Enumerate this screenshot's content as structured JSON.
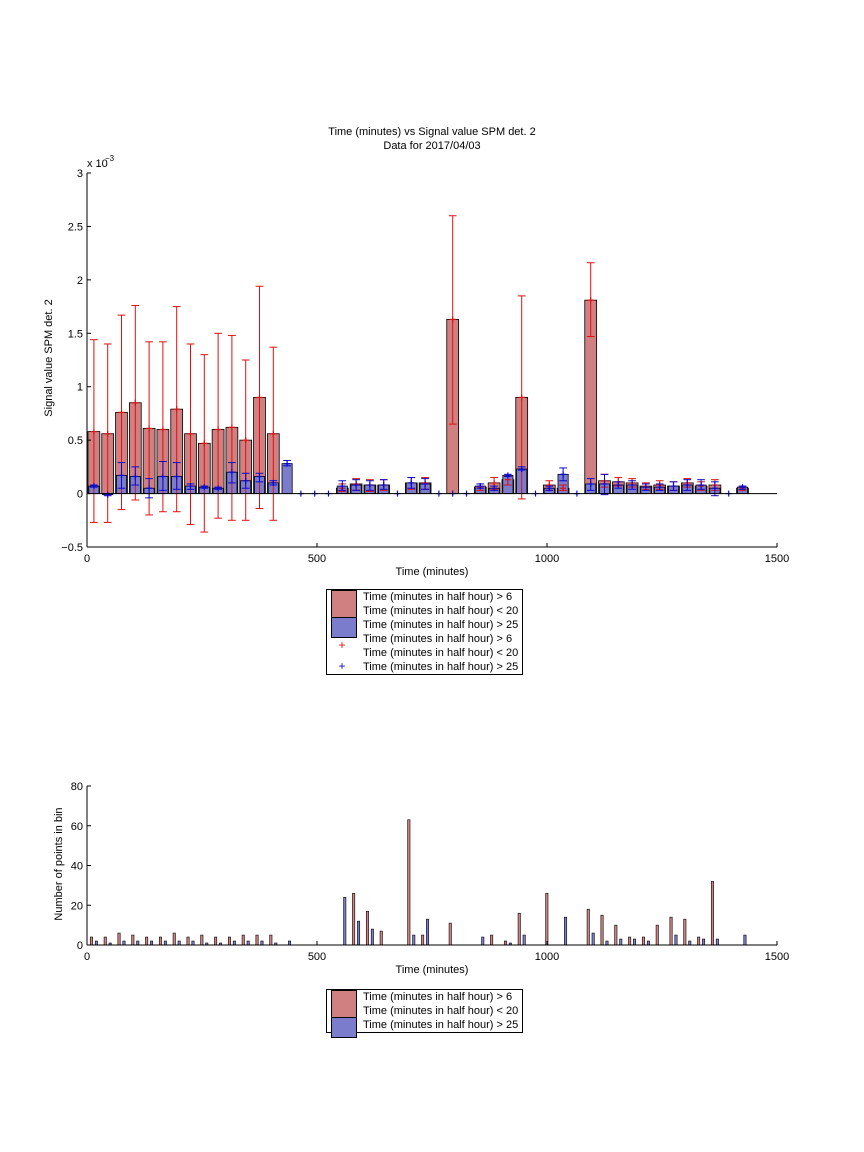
{
  "colors": {
    "bar_red": "#d08080",
    "bar_blue": "#7c7ccc",
    "err_red": "#e01010",
    "err_blue": "#0a0ad0",
    "axis": "#000000"
  },
  "chart_data": [
    {
      "type": "bar",
      "title": "Time (minutes) vs Signal value SPM det. 2",
      "subtitle": "Data for 2017/04/03",
      "xlabel": "Time (minutes)",
      "ylabel": "Signal value SPM det. 2",
      "exponent_label": "x 10",
      "exponent_power": "−3",
      "xlim": [
        0,
        1500
      ],
      "ylim": [
        -0.5,
        3
      ],
      "xticks": [
        "0",
        "500",
        "1000",
        "1500"
      ],
      "yticks": [
        "−0.5",
        "0",
        "0.5",
        "1",
        "1.5",
        "2",
        "2.5",
        "3"
      ],
      "ytick_values": [
        -0.5,
        0,
        0.5,
        1,
        1.5,
        2,
        2.5,
        3
      ],
      "series": [
        {
          "name": "Time (minutes in half hour) > 6\nTime (minutes in half hour) < 20",
          "x": [
            15,
            45,
            75,
            105,
            135,
            165,
            195,
            225,
            255,
            285,
            315,
            345,
            375,
            405,
            555,
            585,
            615,
            645,
            705,
            735,
            795,
            855,
            885,
            915,
            945,
            1005,
            1035,
            1095,
            1125,
            1155,
            1185,
            1215,
            1245,
            1275,
            1305,
            1335,
            1365,
            1425
          ],
          "values": [
            0.58,
            0.56,
            0.76,
            0.85,
            0.61,
            0.6,
            0.79,
            0.56,
            0.47,
            0.6,
            0.62,
            0.5,
            0.9,
            0.56,
            0.05,
            0.09,
            0.08,
            0.08,
            0.1,
            0.1,
            1.63,
            0.06,
            0.1,
            0.13,
            0.9,
            0.08,
            0.05,
            1.81,
            0.12,
            0.11,
            0.1,
            0.07,
            0.08,
            0.07,
            0.1,
            0.07,
            0.08,
            0.05
          ],
          "err_low": [
            -0.27,
            -0.27,
            -0.15,
            -0.06,
            -0.2,
            -0.17,
            -0.17,
            -0.29,
            -0.36,
            -0.23,
            -0.25,
            -0.25,
            -0.14,
            -0.25,
            0.02,
            0.03,
            0.02,
            0.03,
            0.04,
            0.04,
            0.65,
            0.03,
            0.04,
            0.08,
            -0.05,
            0.03,
            0.03,
            1.47,
            0.06,
            0.07,
            0.06,
            0.04,
            0.04,
            0.03,
            0.06,
            0.03,
            0.03,
            0.03
          ],
          "err_high": [
            1.44,
            1.4,
            1.67,
            1.76,
            1.42,
            1.42,
            1.75,
            1.4,
            1.3,
            1.5,
            1.48,
            1.25,
            1.94,
            1.37,
            0.09,
            0.14,
            0.13,
            0.13,
            0.15,
            0.15,
            2.6,
            0.09,
            0.15,
            0.17,
            1.85,
            0.12,
            0.08,
            2.16,
            0.18,
            0.15,
            0.14,
            0.1,
            0.12,
            0.11,
            0.14,
            0.11,
            0.13,
            0.07
          ]
        },
        {
          "name": "Time (minutes in half hour) > 25",
          "x": [
            15,
            45,
            75,
            105,
            135,
            165,
            195,
            225,
            255,
            285,
            315,
            345,
            375,
            405,
            435,
            465,
            495,
            525,
            555,
            585,
            615,
            645,
            675,
            705,
            735,
            765,
            795,
            825,
            855,
            885,
            915,
            945,
            975,
            1005,
            1035,
            1065,
            1095,
            1125,
            1155,
            1185,
            1215,
            1245,
            1275,
            1305,
            1335,
            1365,
            1395,
            1425
          ],
          "values": [
            0.07,
            -0.01,
            0.17,
            0.16,
            0.05,
            0.16,
            0.16,
            0.07,
            0.06,
            0.05,
            0.2,
            0.12,
            0.16,
            0.1,
            0.28,
            0,
            0,
            0,
            0.07,
            0.08,
            0.08,
            0.08,
            0,
            0.1,
            0.09,
            0,
            0,
            0,
            0.07,
            0.05,
            0.17,
            0.23,
            0,
            0.05,
            0.18,
            0,
            0.09,
            0.09,
            0.08,
            0.08,
            0.06,
            0.06,
            0.07,
            0.08,
            0.08,
            0.05,
            0,
            0.06
          ],
          "err_low": [
            0.06,
            -0.02,
            0.05,
            0.08,
            -0.04,
            0.03,
            0.04,
            0.04,
            0.05,
            0.04,
            0.1,
            0.05,
            0.11,
            0.08,
            0.26,
            0,
            0,
            0,
            0.03,
            0.03,
            0.03,
            0.04,
            0,
            0.05,
            0.04,
            0,
            0,
            0,
            0.05,
            0.03,
            0.16,
            0.22,
            0,
            0.03,
            0.12,
            0,
            0.03,
            -0.01,
            0.05,
            0.04,
            0.03,
            0.03,
            0.03,
            0.03,
            0.04,
            -0.02,
            0,
            0.04
          ],
          "err_high": [
            0.08,
            0,
            0.29,
            0.25,
            0.14,
            0.3,
            0.29,
            0.09,
            0.07,
            0.06,
            0.29,
            0.19,
            0.19,
            0.12,
            0.31,
            0,
            0,
            0,
            0.12,
            0.13,
            0.12,
            0.13,
            0,
            0.15,
            0.14,
            0,
            0,
            0,
            0.09,
            0.07,
            0.18,
            0.25,
            0,
            0.07,
            0.24,
            0,
            0.14,
            0.18,
            0.11,
            0.12,
            0.09,
            0.09,
            0.11,
            0.13,
            0.13,
            0.11,
            0,
            0.07
          ]
        }
      ],
      "legend": [
        {
          "kind": "bar",
          "color": "bar_red",
          "label": "Time (minutes in half hour) > 6"
        },
        {
          "kind": "bar",
          "color": "bar_red",
          "label": "Time (minutes in half hour) < 20"
        },
        {
          "kind": "bar",
          "color": "bar_blue",
          "label": "Time (minutes in half hour) > 25"
        },
        {
          "kind": "marker",
          "color": "err_red",
          "label": "Time (minutes in half hour) > 6"
        },
        {
          "kind": "marker",
          "color": "err_red",
          "label": "Time (minutes in half hour) < 20"
        },
        {
          "kind": "marker",
          "color": "err_blue",
          "label": "Time (minutes in half hour) > 25"
        }
      ],
      "legend_marker": "+",
      "legend_position": "below plot"
    },
    {
      "type": "bar",
      "title": "",
      "xlabel": "Time (minutes)",
      "ylabel": "Number of points in bin",
      "xlim": [
        0,
        1500
      ],
      "ylim": [
        0,
        80
      ],
      "xticks": [
        "0",
        "500",
        "1000",
        "1500"
      ],
      "yticks": [
        "0",
        "20",
        "40",
        "60",
        "80"
      ],
      "ytick_values": [
        0,
        20,
        40,
        60,
        80
      ],
      "series": [
        {
          "name": "Time (minutes in half hour) > 6\nTime (minutes in half hour) < 20",
          "x": [
            15,
            45,
            75,
            105,
            135,
            165,
            195,
            225,
            255,
            285,
            315,
            345,
            375,
            405,
            555,
            585,
            615,
            645,
            705,
            735,
            795,
            855,
            885,
            915,
            945,
            1005,
            1035,
            1095,
            1125,
            1155,
            1185,
            1215,
            1245,
            1275,
            1305,
            1335,
            1365,
            1425
          ],
          "values": [
            4,
            4,
            6,
            5,
            4,
            4,
            6,
            4,
            5,
            4,
            4,
            5,
            5,
            5,
            0,
            26,
            17,
            7,
            63,
            5,
            11,
            0,
            5,
            2,
            16,
            26,
            0,
            18,
            15,
            10,
            4,
            4,
            10,
            14,
            13,
            4,
            32,
            0
          ]
        },
        {
          "name": "Time (minutes in half hour) > 25",
          "x": [
            15,
            45,
            75,
            105,
            135,
            165,
            195,
            225,
            255,
            285,
            315,
            345,
            375,
            405,
            435,
            555,
            585,
            615,
            705,
            735,
            855,
            915,
            945,
            1035,
            1095,
            1125,
            1155,
            1185,
            1215,
            1275,
            1305,
            1335,
            1365,
            1425
          ],
          "values": [
            2,
            1,
            2,
            2,
            2,
            2,
            2,
            2,
            1,
            1,
            2,
            2,
            2,
            1,
            2,
            24,
            12,
            8,
            5,
            13,
            4,
            1,
            5,
            14,
            6,
            2,
            3,
            3,
            2,
            5,
            2,
            3,
            3,
            5
          ]
        }
      ],
      "legend": [
        {
          "kind": "bar",
          "color": "bar_red",
          "label": "Time (minutes in half hour) > 6"
        },
        {
          "kind": "bar",
          "color": "bar_red",
          "label": "Time (minutes in half hour) < 20"
        },
        {
          "kind": "bar",
          "color": "bar_blue",
          "label": "Time (minutes in half hour) > 25"
        }
      ],
      "legend_position": "below plot"
    }
  ]
}
